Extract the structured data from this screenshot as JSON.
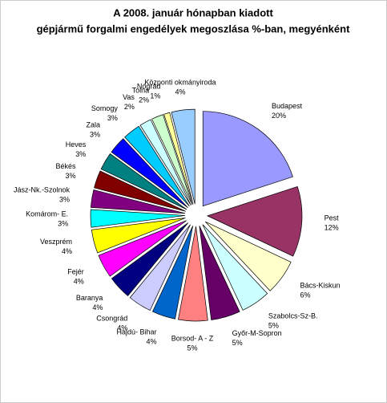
{
  "chart_data": {
    "type": "pie",
    "title": [
      "A  2008. január hónapban kiadott",
      "gépjármű forgalmi engedélyek megoszlása %-ban, megyénként"
    ],
    "categories": [
      "Budapest",
      "Pest",
      "Bács-Kiskun",
      "Szabolcs-Sz-B.",
      "Győr-M-Sopron",
      "Borsod- A - Z",
      "Hajdú- Bihar",
      "Csongrád",
      "Baranya",
      "Fejér",
      "Veszprém",
      "Komárom- E.",
      "Jász-Nk.-Szolnok",
      "Békés",
      "Heves",
      "Zala",
      "Somogy",
      "Vas",
      "Tolna",
      "Nógrád",
      "Központi okmányiroda"
    ],
    "values": [
      20,
      12,
      6,
      5,
      5,
      5,
      4,
      4,
      4,
      4,
      4,
      3,
      3,
      3,
      3,
      3,
      3,
      2,
      2,
      1,
      4
    ],
    "value_labels": [
      "20%",
      "12%",
      "6%",
      "5%",
      "5%",
      "5%",
      "4%",
      "4%",
      "4%",
      "4%",
      "4%",
      "3%",
      "3%",
      "3%",
      "3%",
      "3%",
      "3%",
      "2%",
      "2%",
      "1%",
      "4%"
    ],
    "colors": [
      "#9999ff",
      "#993366",
      "#ffffcc",
      "#ccffff",
      "#660066",
      "#ff8080",
      "#0066cc",
      "#ccccff",
      "#000080",
      "#ff00ff",
      "#ffff00",
      "#00ffff",
      "#800080",
      "#800000",
      "#008080",
      "#0000ff",
      "#00ccff",
      "#ccffff",
      "#ccffcc",
      "#ffff99",
      "#99ccff"
    ]
  }
}
